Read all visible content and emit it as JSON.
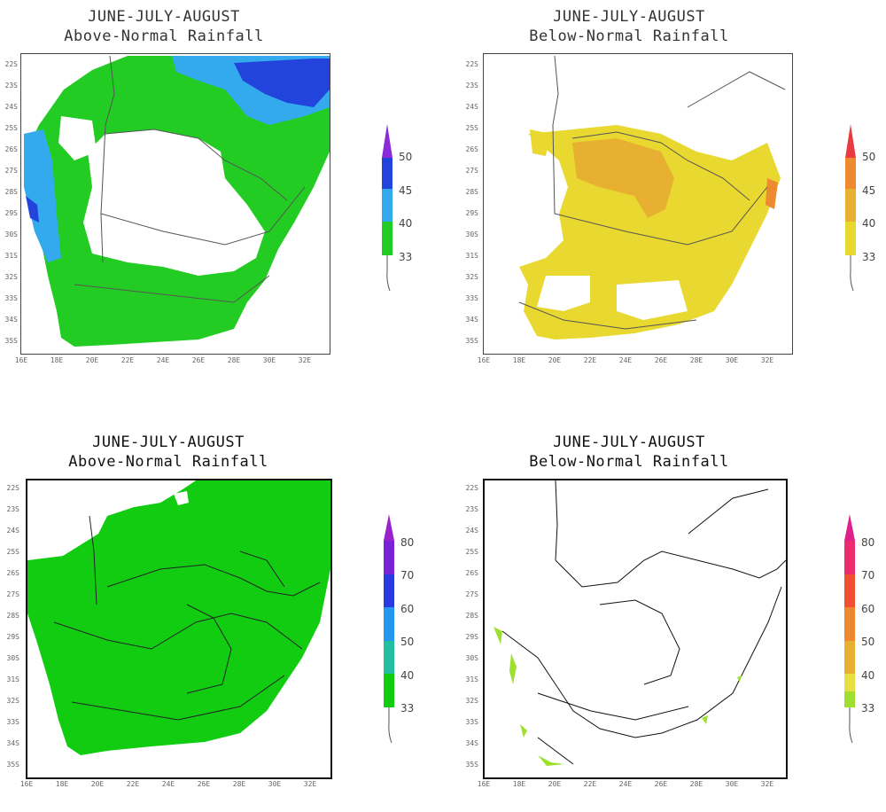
{
  "panels": [
    {
      "title_line1": "JUNE-JULY-AUGUST",
      "title_line2": "Above-Normal Rainfall",
      "legend": [
        "33",
        "40",
        "45",
        "50"
      ],
      "colors": [
        "#22cc22",
        "#33aaee",
        "#2244dd",
        "#8a2ad8"
      ]
    },
    {
      "title_line1": "JUNE-JULY-AUGUST",
      "title_line2": "Below-Normal Rainfall",
      "legend": [
        "33",
        "40",
        "45",
        "50"
      ],
      "colors": [
        "#e8d830",
        "#e8b030",
        "#ee8a30",
        "#e83a40"
      ]
    },
    {
      "title_line1": "JUNE-JULY-AUGUST",
      "title_line2": "Above-Normal Rainfall",
      "legend": [
        "33",
        "40",
        "50",
        "60",
        "70",
        "80"
      ],
      "colors": [
        "#11cc11",
        "#22bb66",
        "#22c0a0",
        "#2299ee",
        "#2a3ae0",
        "#7a22d8",
        "#9a22cc"
      ]
    },
    {
      "title_line1": "JUNE-JULY-AUGUST",
      "title_line2": "Below-Normal Rainfall",
      "legend": [
        "33",
        "40",
        "50",
        "60",
        "70",
        "80"
      ],
      "colors": [
        "#9ee030",
        "#e8e040",
        "#e8b030",
        "#ee8830",
        "#f05030",
        "#ee2a70",
        "#e0208a"
      ]
    }
  ],
  "lat_labels": [
    "22S",
    "23S",
    "24S",
    "25S",
    "26S",
    "27S",
    "28S",
    "29S",
    "30S",
    "31S",
    "32S",
    "33S",
    "34S",
    "35S"
  ],
  "lon_labels": [
    "16E",
    "18E",
    "20E",
    "22E",
    "24E",
    "26E",
    "28E",
    "30E",
    "32E"
  ]
}
